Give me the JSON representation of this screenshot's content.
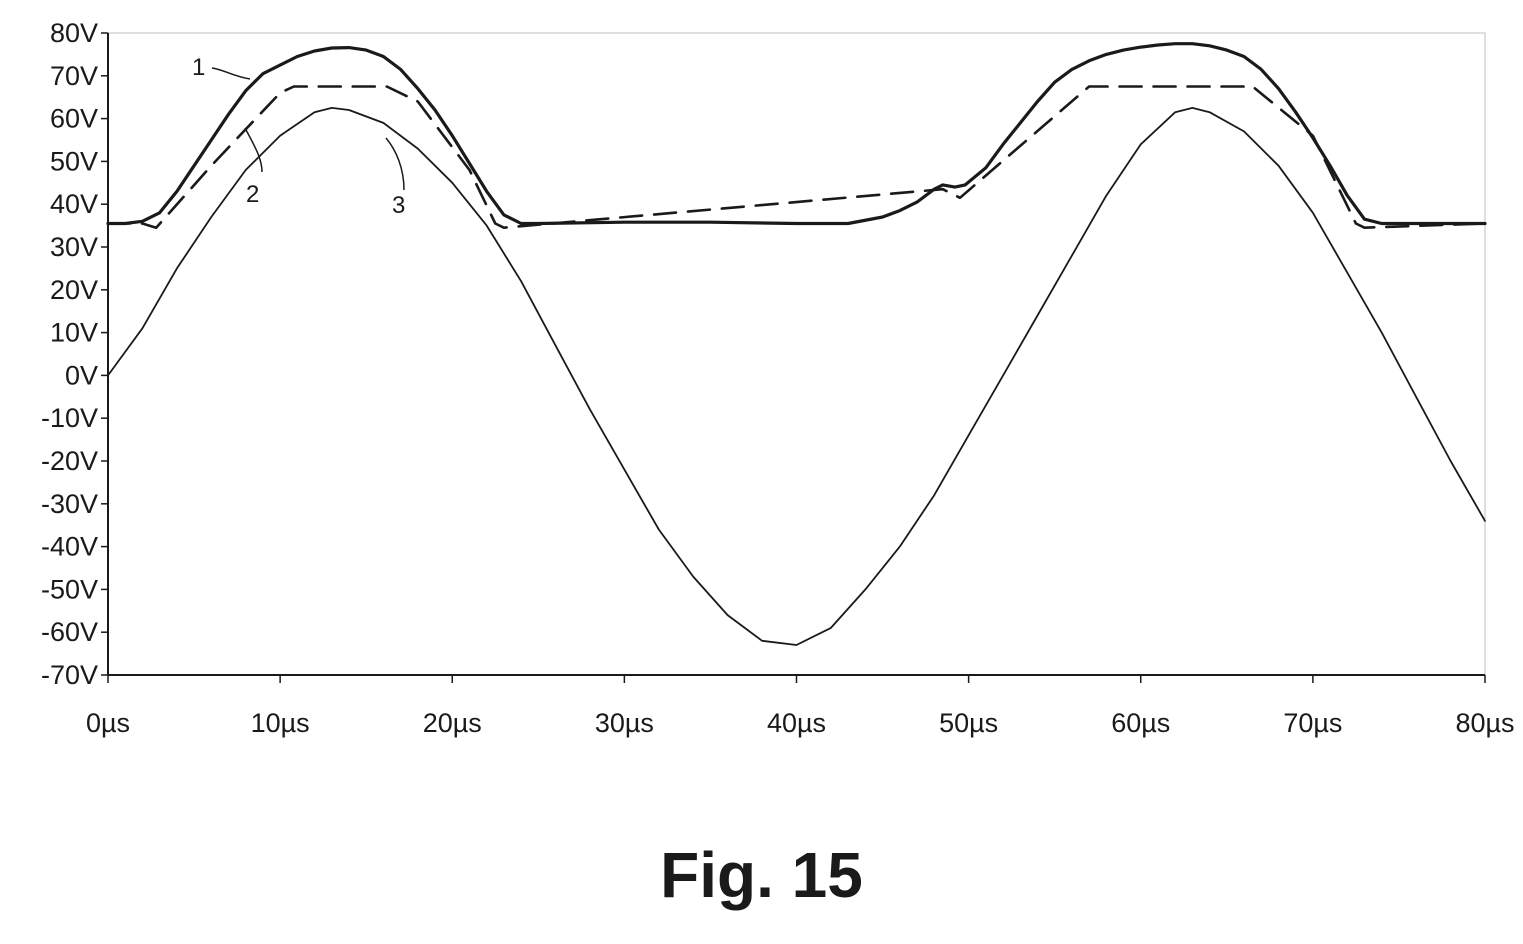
{
  "figure": {
    "caption": "Fig. 15"
  },
  "chart_data": {
    "type": "line",
    "title": "",
    "xlabel": "",
    "ylabel": "",
    "xlim": [
      0,
      80
    ],
    "ylim": [
      -70,
      80
    ],
    "grid": false,
    "x_ticks": [
      0,
      10,
      20,
      30,
      40,
      50,
      60,
      70,
      80
    ],
    "x_tick_labels": [
      "0µs",
      "10µs",
      "20µs",
      "30µs",
      "40µs",
      "50µs",
      "60µs",
      "70µs",
      "80µs"
    ],
    "y_ticks": [
      80,
      70,
      60,
      50,
      40,
      30,
      20,
      10,
      0,
      -10,
      -20,
      -30,
      -40,
      -50,
      -60,
      -70
    ],
    "y_tick_labels": [
      "80V",
      "70V",
      "60V",
      "50V",
      "40V",
      "30V",
      "20V",
      "10V",
      "0V",
      "-10V",
      "-20V",
      "-30V",
      "-40V",
      "-50V",
      "-60V",
      "-70V"
    ],
    "series": [
      {
        "label": "1",
        "style": "solid-thick",
        "x": [
          0,
          1,
          2,
          3,
          4,
          5,
          6,
          7,
          8,
          9,
          10,
          11,
          12,
          13,
          14,
          15,
          16,
          17,
          18,
          19,
          20,
          21,
          22,
          23,
          24,
          25,
          30,
          35,
          40,
          43,
          45,
          46,
          47,
          48,
          48.5,
          49.2,
          49.8,
          51,
          52,
          53,
          54,
          55,
          56,
          57,
          58,
          59,
          60,
          61,
          62,
          63,
          64,
          65,
          66,
          67,
          68,
          69,
          70,
          71,
          72,
          73,
          74,
          75,
          78,
          80
        ],
        "y": [
          35.5,
          35.5,
          36,
          38,
          43,
          49,
          55,
          61,
          66.5,
          70.5,
          72.5,
          74.5,
          75.8,
          76.5,
          76.6,
          76,
          74.5,
          71.5,
          67,
          62,
          56,
          49.5,
          43,
          37.5,
          35.5,
          35.5,
          35.8,
          35.8,
          35.5,
          35.5,
          37,
          38.5,
          40.5,
          43.5,
          44.5,
          44,
          44.5,
          48.5,
          54,
          59,
          64,
          68.5,
          71.5,
          73.5,
          75,
          76,
          76.7,
          77.2,
          77.5,
          77.5,
          77,
          76,
          74.5,
          71.5,
          67,
          61.5,
          55.5,
          49,
          42,
          36.5,
          35.5,
          35.5,
          35.5,
          35.5
        ]
      },
      {
        "label": "2",
        "style": "dashed",
        "x": [
          0,
          2,
          2.8,
          6,
          10,
          10.8,
          16.2,
          18,
          21,
          22.5,
          23,
          48.5,
          49.5,
          57,
          66.5,
          70,
          72.5,
          73,
          80
        ],
        "y": [
          35.5,
          35.5,
          34.5,
          49,
          66,
          67.5,
          67.5,
          64,
          48,
          35.5,
          34.5,
          43.5,
          41.5,
          67.5,
          67.5,
          56,
          35.5,
          34.5,
          35.5
        ]
      },
      {
        "label": "3",
        "style": "solid-thin",
        "x": [
          0,
          2,
          4,
          6,
          8,
          10,
          12,
          13,
          14,
          16,
          18,
          20,
          22,
          24,
          26,
          28,
          30,
          32,
          34,
          36,
          38,
          40,
          42,
          44,
          46,
          48,
          50,
          52,
          54,
          56,
          58,
          60,
          62,
          63,
          64,
          66,
          68,
          70,
          72,
          74,
          76,
          78,
          80
        ],
        "y": [
          0,
          11,
          25,
          37,
          48,
          56,
          61.5,
          62.5,
          62,
          59,
          53,
          45,
          35,
          22,
          7,
          -8,
          -22,
          -36,
          -47,
          -56,
          -62,
          -63,
          -59,
          -50,
          -40,
          -28,
          -14,
          0,
          14,
          28,
          42,
          54,
          61.5,
          62.5,
          61.5,
          57,
          49,
          38,
          24,
          10,
          -5,
          -20,
          -34
        ]
      }
    ],
    "annotations": [
      "1",
      "2",
      "3"
    ]
  }
}
